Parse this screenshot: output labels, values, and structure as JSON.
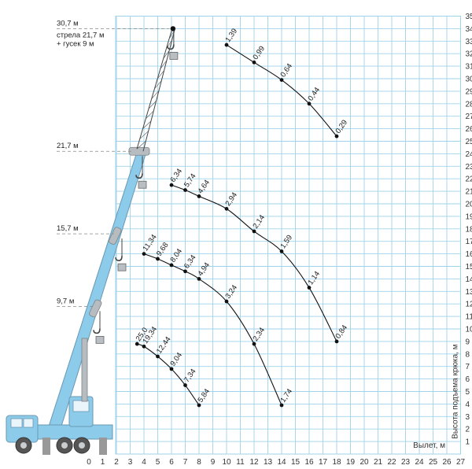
{
  "chart_data": {
    "type": "line",
    "title": "",
    "xlabel": "Вылет, м",
    "ylabel": "Высота подъема крюка, м",
    "xlim": [
      0,
      27
    ],
    "ylim": [
      0,
      35
    ],
    "grid": true,
    "x_ticks": [
      0,
      1,
      2,
      3,
      4,
      5,
      6,
      7,
      8,
      9,
      10,
      11,
      12,
      13,
      14,
      15,
      16,
      17,
      18,
      19,
      20,
      21,
      22,
      23,
      24,
      25,
      26,
      27
    ],
    "y_ticks": [
      1,
      2,
      3,
      4,
      5,
      6,
      7,
      8,
      9,
      10,
      11,
      12,
      13,
      14,
      15,
      16,
      17,
      18,
      19,
      20,
      21,
      22,
      23,
      24,
      25,
      26,
      27,
      28,
      29,
      30,
      31,
      32,
      33,
      34,
      35
    ],
    "height_marks": [
      {
        "label": "30,7 м",
        "note": "стрела 21,7 м",
        "note2": "+ гусек 9 м",
        "y": 34
      },
      {
        "label": "21,7 м",
        "y": 24.2
      },
      {
        "label": "15,7 м",
        "y": 17.6
      },
      {
        "label": "9,7 м",
        "y": 11.8
      }
    ],
    "series": [
      {
        "points": [
          {
            "x": 10,
            "y": 32.7,
            "label": "1,39"
          },
          {
            "x": 12,
            "y": 31.3,
            "label": "0,99"
          },
          {
            "x": 14,
            "y": 29.9,
            "label": "0,64"
          },
          {
            "x": 16,
            "y": 28.0,
            "label": "0,44"
          },
          {
            "x": 18,
            "y": 25.4,
            "label": "0,29"
          }
        ]
      },
      {
        "points": [
          {
            "x": 6,
            "y": 21.5,
            "label": "6,34"
          },
          {
            "x": 7,
            "y": 21.1,
            "label": "5,74"
          },
          {
            "x": 8,
            "y": 20.6,
            "label": "4,64"
          },
          {
            "x": 10,
            "y": 19.6,
            "label": "2,94"
          },
          {
            "x": 12,
            "y": 17.8,
            "label": "2,14"
          },
          {
            "x": 14,
            "y": 16.2,
            "label": "1,59"
          },
          {
            "x": 16,
            "y": 13.3,
            "label": "1,14"
          },
          {
            "x": 18,
            "y": 9.0,
            "label": "0,84"
          }
        ]
      },
      {
        "points": [
          {
            "x": 4,
            "y": 16.0,
            "label": "11,34"
          },
          {
            "x": 5,
            "y": 15.6,
            "label": "9,68"
          },
          {
            "x": 6,
            "y": 15.1,
            "label": "8,04"
          },
          {
            "x": 7,
            "y": 14.6,
            "label": "6,34"
          },
          {
            "x": 8,
            "y": 14.0,
            "label": "4,94"
          },
          {
            "x": 10,
            "y": 12.2,
            "label": "3,24"
          },
          {
            "x": 12,
            "y": 8.8,
            "label": "2,34"
          },
          {
            "x": 14,
            "y": 3.9,
            "label": "1,74"
          }
        ]
      },
      {
        "points": [
          {
            "x": 3.5,
            "y": 8.8,
            "label": "25,0"
          },
          {
            "x": 4,
            "y": 8.6,
            "label": "19,34"
          },
          {
            "x": 5,
            "y": 7.8,
            "label": "12,44"
          },
          {
            "x": 6,
            "y": 6.8,
            "label": "9,04"
          },
          {
            "x": 7,
            "y": 5.5,
            "label": "7,34"
          },
          {
            "x": 8,
            "y": 3.9,
            "label": "5,84"
          }
        ]
      }
    ]
  },
  "colors": {
    "grid": "#9fd3ea",
    "curve": "#111111",
    "crane_body": "#8ccbe9",
    "crane_dark": "#6a98b2",
    "crane_grey": "#b7bcc0",
    "dash": "#888888"
  }
}
